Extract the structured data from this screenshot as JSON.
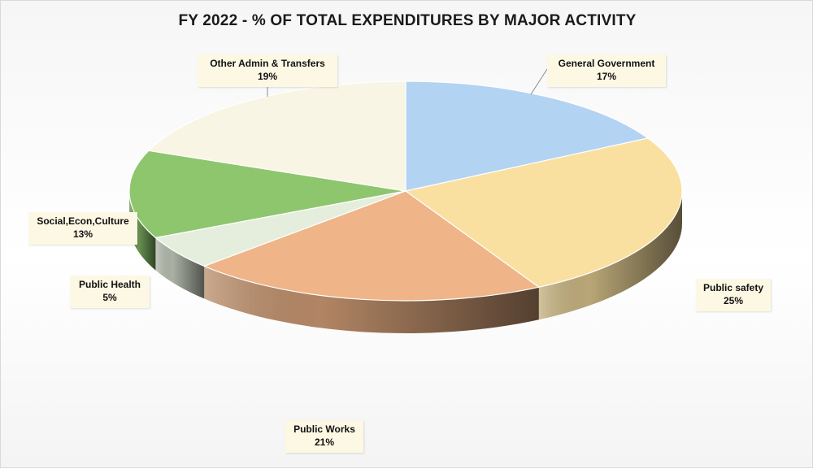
{
  "chart_data": {
    "type": "pie",
    "title": "FY 2022 - % OF  TOTAL EXPENDITURES BY MAJOR ACTIVITY",
    "is_3d": true,
    "slices": [
      {
        "label": "General Government",
        "value": 17,
        "display": "17%",
        "color": "#b3d3f3"
      },
      {
        "label": "Public safety",
        "value": 25,
        "display": "25%",
        "color": "#fae0a0"
      },
      {
        "label": "Public Works",
        "value": 21,
        "display": "21%",
        "color": "#efb487"
      },
      {
        "label": "Public Health",
        "value": 5,
        "display": "5%",
        "color": "#e5eedd"
      },
      {
        "label": "Social,Econ,Culture",
        "value": 13,
        "display": "13%",
        "color": "#8ec66e"
      },
      {
        "label": "Other Admin & Transfers",
        "value": 19,
        "display": "19%",
        "color": "#f9f5e4"
      }
    ]
  }
}
